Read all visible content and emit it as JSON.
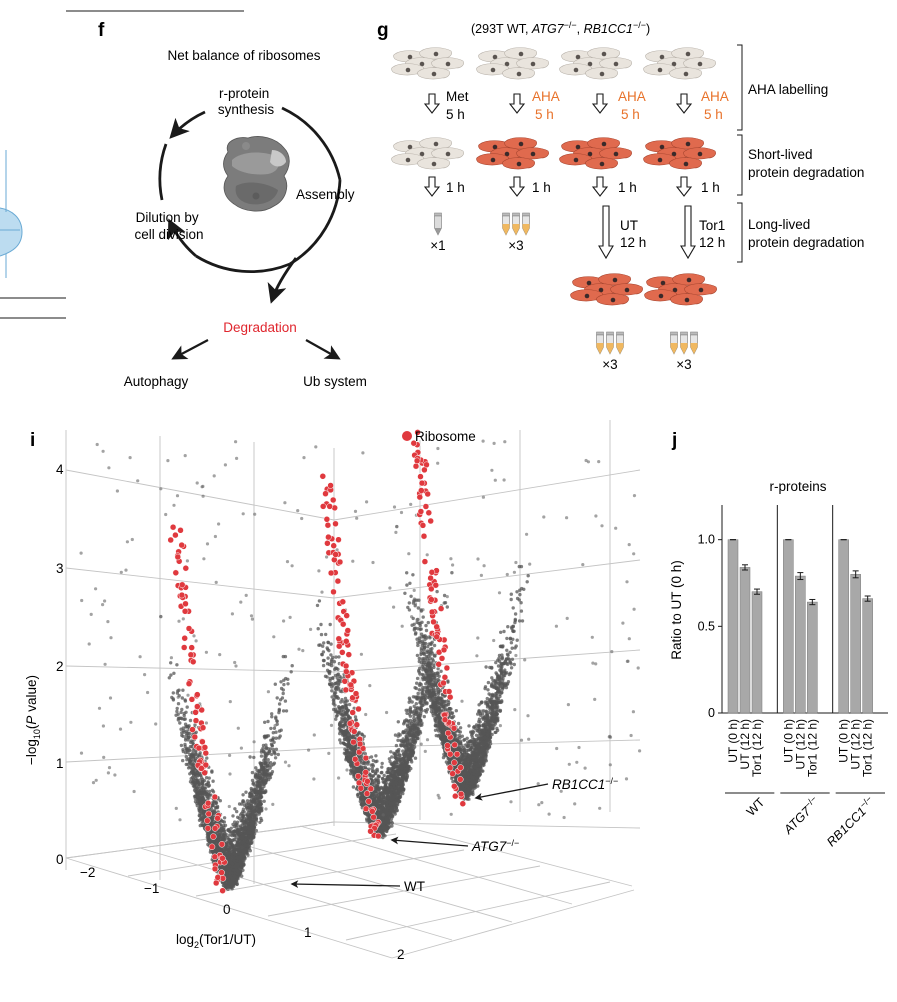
{
  "panel_f": {
    "letter": "f",
    "title": "Net balance of ribosomes",
    "cycle_top": [
      "r-protein",
      "synthesis"
    ],
    "assembly": "Assembly",
    "dilution": [
      "Dilution by",
      "cell division"
    ],
    "degradation": "Degradation",
    "autophagy": "Autophagy",
    "ub_system": "Ub system",
    "colors": {
      "degradation": "#e0262e"
    }
  },
  "panel_g": {
    "letter": "g",
    "header_prefix": "(293T WT, ",
    "header_gene1": "ATG7",
    "header_sep": ", ",
    "header_gene2": "RB1CC1",
    "header_suffix": ")",
    "superscript": "−/−",
    "steps": [
      {
        "label": "Met",
        "time": "5 h",
        "color": "black"
      },
      {
        "label": "AHA",
        "time": "5 h",
        "color": "orange"
      },
      {
        "label": "AHA",
        "time": "5 h",
        "color": "orange"
      },
      {
        "label": "AHA",
        "time": "5 h",
        "color": "orange"
      }
    ],
    "chase": "1 h",
    "tube_counts": [
      "×1",
      "×3",
      "×3",
      "×3"
    ],
    "long_labels": [
      {
        "label": "UT",
        "time": "12 h"
      },
      {
        "label": "Tor1",
        "time": "12 h"
      }
    ],
    "stage_labels": {
      "aha": "AHA labelling",
      "short": [
        "Short-lived",
        "protein degradation"
      ],
      "long": [
        "Long-lived",
        "protein degradation"
      ]
    },
    "colors": {
      "cell_plain": "#e9e4dd",
      "cell_labelled": "#e06a4e",
      "orange": "#e8722a",
      "tube": "#f0b860"
    }
  },
  "panel_i": {
    "letter": "i",
    "legend": "Ribosome",
    "ylabel_prefix": "−log",
    "ylabel_sub": "10",
    "ylabel_p": "P",
    "ylabel_suffix": " value)",
    "xlabel_prefix": "log",
    "xlabel_sub": "2",
    "xlabel_suffix": "(Tor1/UT)",
    "y_ticks": [
      "0",
      "1",
      "2",
      "3",
      "4"
    ],
    "x_ticks": [
      "−2",
      "−1",
      "0",
      "1",
      "2"
    ],
    "series_labels": [
      {
        "gene": "WT",
        "sup": ""
      },
      {
        "gene": "ATG7",
        "sup": "−/−"
      },
      {
        "gene": "RB1CC1",
        "sup": "−/−"
      }
    ],
    "colors": {
      "ribosome": "#e0393e",
      "points": "#555555"
    }
  },
  "chart_data": {
    "type": "bar",
    "title": "r-proteins",
    "ylabel": "Ratio to UT (0 h)",
    "ylim": [
      0,
      1.2
    ],
    "yticks": [
      "0",
      "0.5",
      "1.0"
    ],
    "categories": [
      "UT (0 h)",
      "UT (12 h)",
      "Tor1 (12 h)"
    ],
    "groups": [
      {
        "name": "WT",
        "sup": "",
        "values": [
          1.0,
          0.84,
          0.7
        ],
        "errors": [
          0.0,
          0.015,
          0.015
        ]
      },
      {
        "name": "ATG7",
        "sup": "−/−",
        "values": [
          1.0,
          0.79,
          0.64
        ],
        "errors": [
          0.0,
          0.02,
          0.015
        ]
      },
      {
        "name": "RB1CC1",
        "sup": "−/−",
        "values": [
          1.0,
          0.8,
          0.66
        ],
        "errors": [
          0.0,
          0.02,
          0.015
        ]
      }
    ],
    "letter": "j",
    "colors": {
      "bar": "#a8a8a8"
    }
  }
}
